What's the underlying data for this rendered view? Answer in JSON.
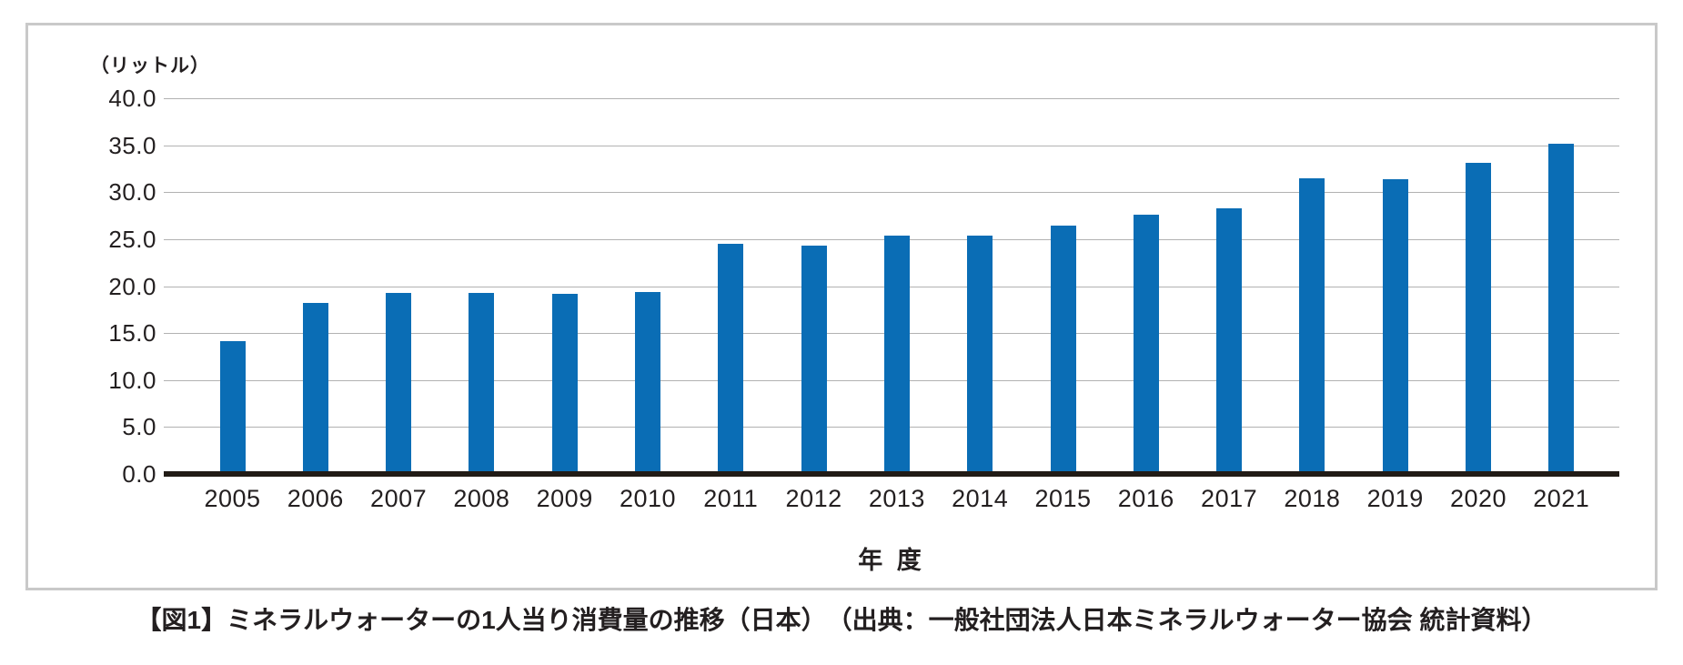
{
  "caption": "【図1】ミネラルウォーターの1人当り消費量の推移（日本）　（出典：一般社団法人日本ミネラルウォーター協会 統計資料）",
  "chart_data": {
    "type": "bar",
    "title": "",
    "unit_label": "（リットル）",
    "xlabel": "年 度",
    "categories": [
      "2005",
      "2006",
      "2007",
      "2008",
      "2009",
      "2010",
      "2011",
      "2012",
      "2013",
      "2014",
      "2015",
      "2016",
      "2017",
      "2018",
      "2019",
      "2020",
      "2021"
    ],
    "values": [
      14.1,
      18.2,
      19.3,
      19.3,
      19.2,
      19.4,
      24.5,
      24.3,
      25.4,
      25.4,
      26.4,
      27.6,
      28.3,
      31.5,
      31.4,
      33.1,
      35.2
    ],
    "ylim": [
      0,
      40
    ],
    "ytick_step": 5,
    "ytick_labels": [
      "0.0",
      "5.0",
      "10.0",
      "15.0",
      "20.0",
      "25.0",
      "30.0",
      "35.0",
      "40.0"
    ],
    "grid": true,
    "legend": "none",
    "bar_color": "#0a6db5",
    "gridline_color": "#b2b2b2",
    "axis_line_color": "#211b16",
    "text_color": "#231f20"
  }
}
